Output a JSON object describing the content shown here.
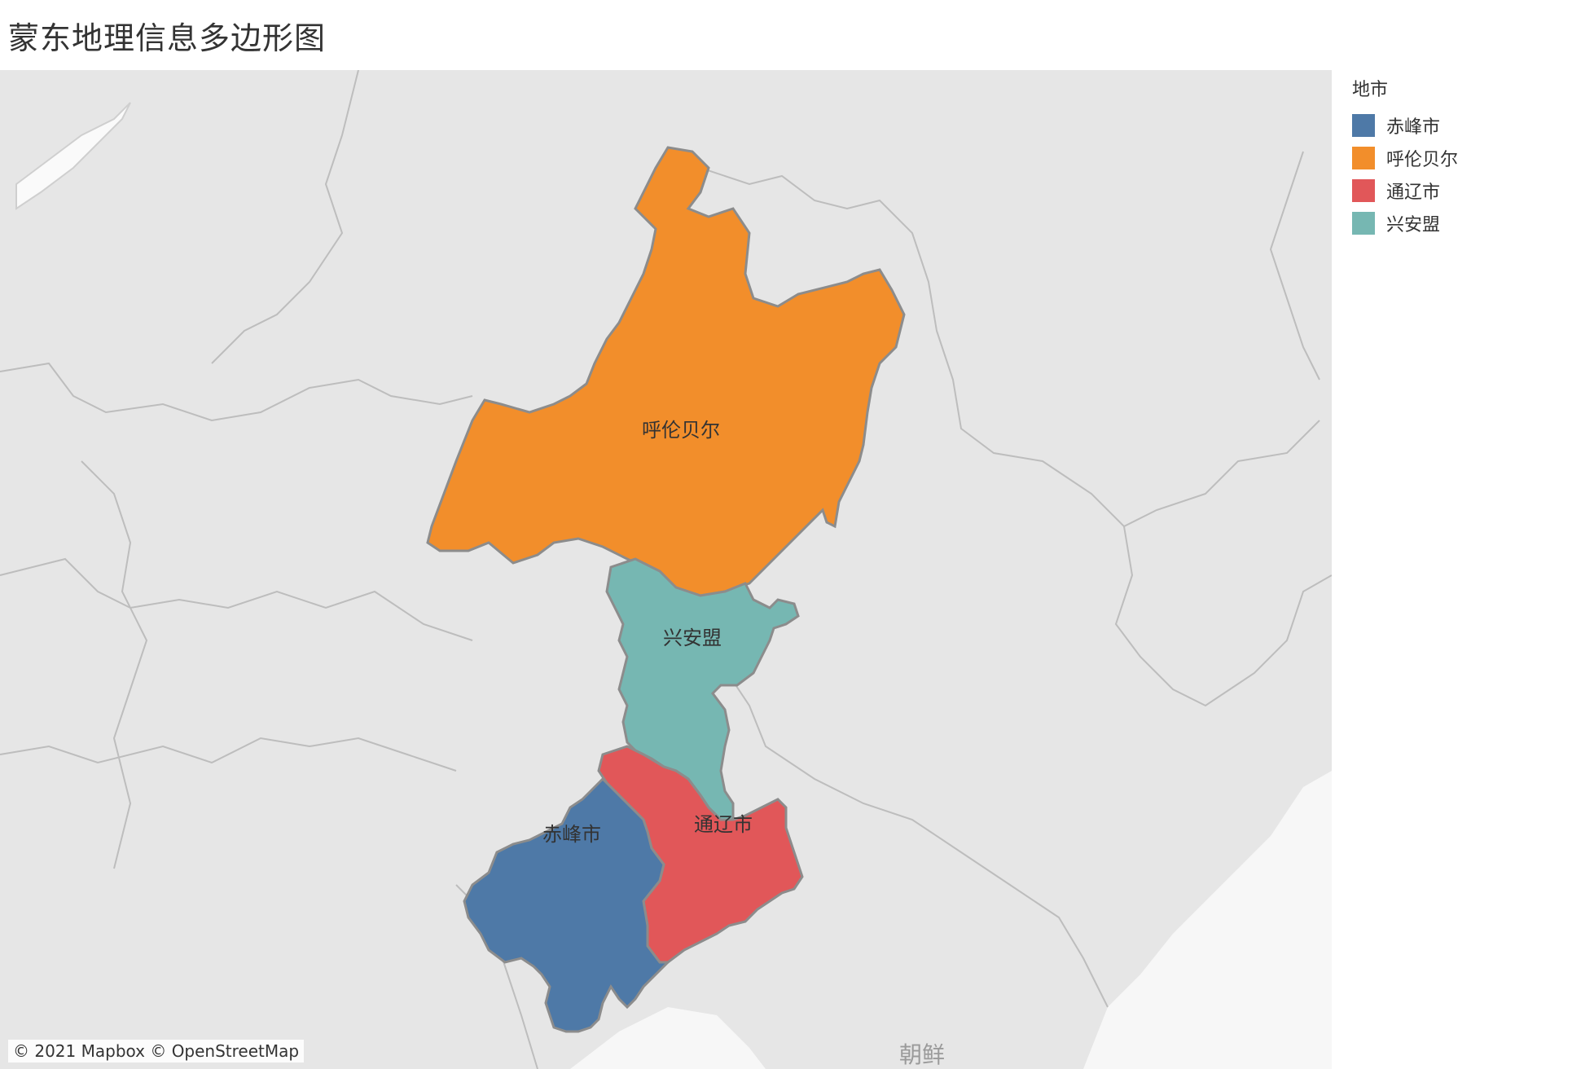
{
  "title": "蒙东地理信息多边形图",
  "attribution": "© 2021 Mapbox © OpenStreetMap",
  "background_label": "朝鲜",
  "legend": {
    "title": "地市",
    "items": [
      {
        "label": "赤峰市",
        "color": "#4e79a7"
      },
      {
        "label": "呼伦贝尔",
        "color": "#f28e2b"
      },
      {
        "label": "通辽市",
        "color": "#e15759"
      },
      {
        "label": "兴安盟",
        "color": "#76b7b2"
      }
    ]
  },
  "regions": [
    {
      "name": "呼伦贝尔",
      "color": "#f28e2b"
    },
    {
      "name": "兴安盟",
      "color": "#76b7b2"
    },
    {
      "name": "通辽市",
      "color": "#e15759"
    },
    {
      "name": "赤峰市",
      "color": "#4e79a7"
    }
  ]
}
